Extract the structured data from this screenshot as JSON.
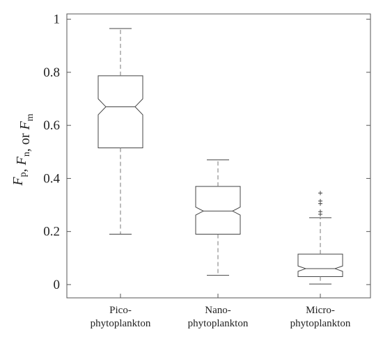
{
  "chart_data": {
    "type": "box",
    "notched": true,
    "ylabel": "Fp, Fn, or Fm",
    "ylabel_parts": [
      {
        "text": "F",
        "italic": true,
        "sub": false
      },
      {
        "text": "p",
        "italic": false,
        "sub": true
      },
      {
        "text": ", ",
        "italic": false,
        "sub": false
      },
      {
        "text": "F",
        "italic": true,
        "sub": false
      },
      {
        "text": "n",
        "italic": false,
        "sub": true
      },
      {
        "text": ", or ",
        "italic": false,
        "sub": false
      },
      {
        "text": "F",
        "italic": true,
        "sub": false
      },
      {
        "text": "m",
        "italic": false,
        "sub": true
      }
    ],
    "ylim": [
      -0.05,
      1.02
    ],
    "yticks": [
      0,
      0.2,
      0.4,
      0.6,
      0.8,
      1
    ],
    "ytick_labels": [
      "0",
      "0.2",
      "0.4",
      "0.6",
      "0.8",
      "1"
    ],
    "grid": false,
    "categories": [
      {
        "line1": "Pico-",
        "line2": "phytoplankton"
      },
      {
        "line1": "Nano-",
        "line2": "phytoplankton"
      },
      {
        "line1": "Micro-",
        "line2": "phytoplankton"
      }
    ],
    "boxes": [
      {
        "whisker_low": 0.19,
        "q1": 0.515,
        "notch_low": 0.64,
        "median": 0.67,
        "notch_high": 0.7,
        "q3": 0.787,
        "whisker_high": 0.965,
        "outliers": []
      },
      {
        "whisker_low": 0.035,
        "q1": 0.19,
        "notch_low": 0.262,
        "median": 0.277,
        "notch_high": 0.292,
        "q3": 0.37,
        "whisker_high": 0.47,
        "outliers": []
      },
      {
        "whisker_low": 0.002,
        "q1": 0.03,
        "notch_low": 0.05,
        "median": 0.06,
        "notch_high": 0.07,
        "q3": 0.115,
        "whisker_high": 0.252,
        "outliers": [
          0.265,
          0.275,
          0.305,
          0.315,
          0.345
        ]
      }
    ],
    "colors": {
      "axis": "#555555",
      "box": "#444444",
      "whisker": "#777777",
      "text": "#222222"
    }
  }
}
